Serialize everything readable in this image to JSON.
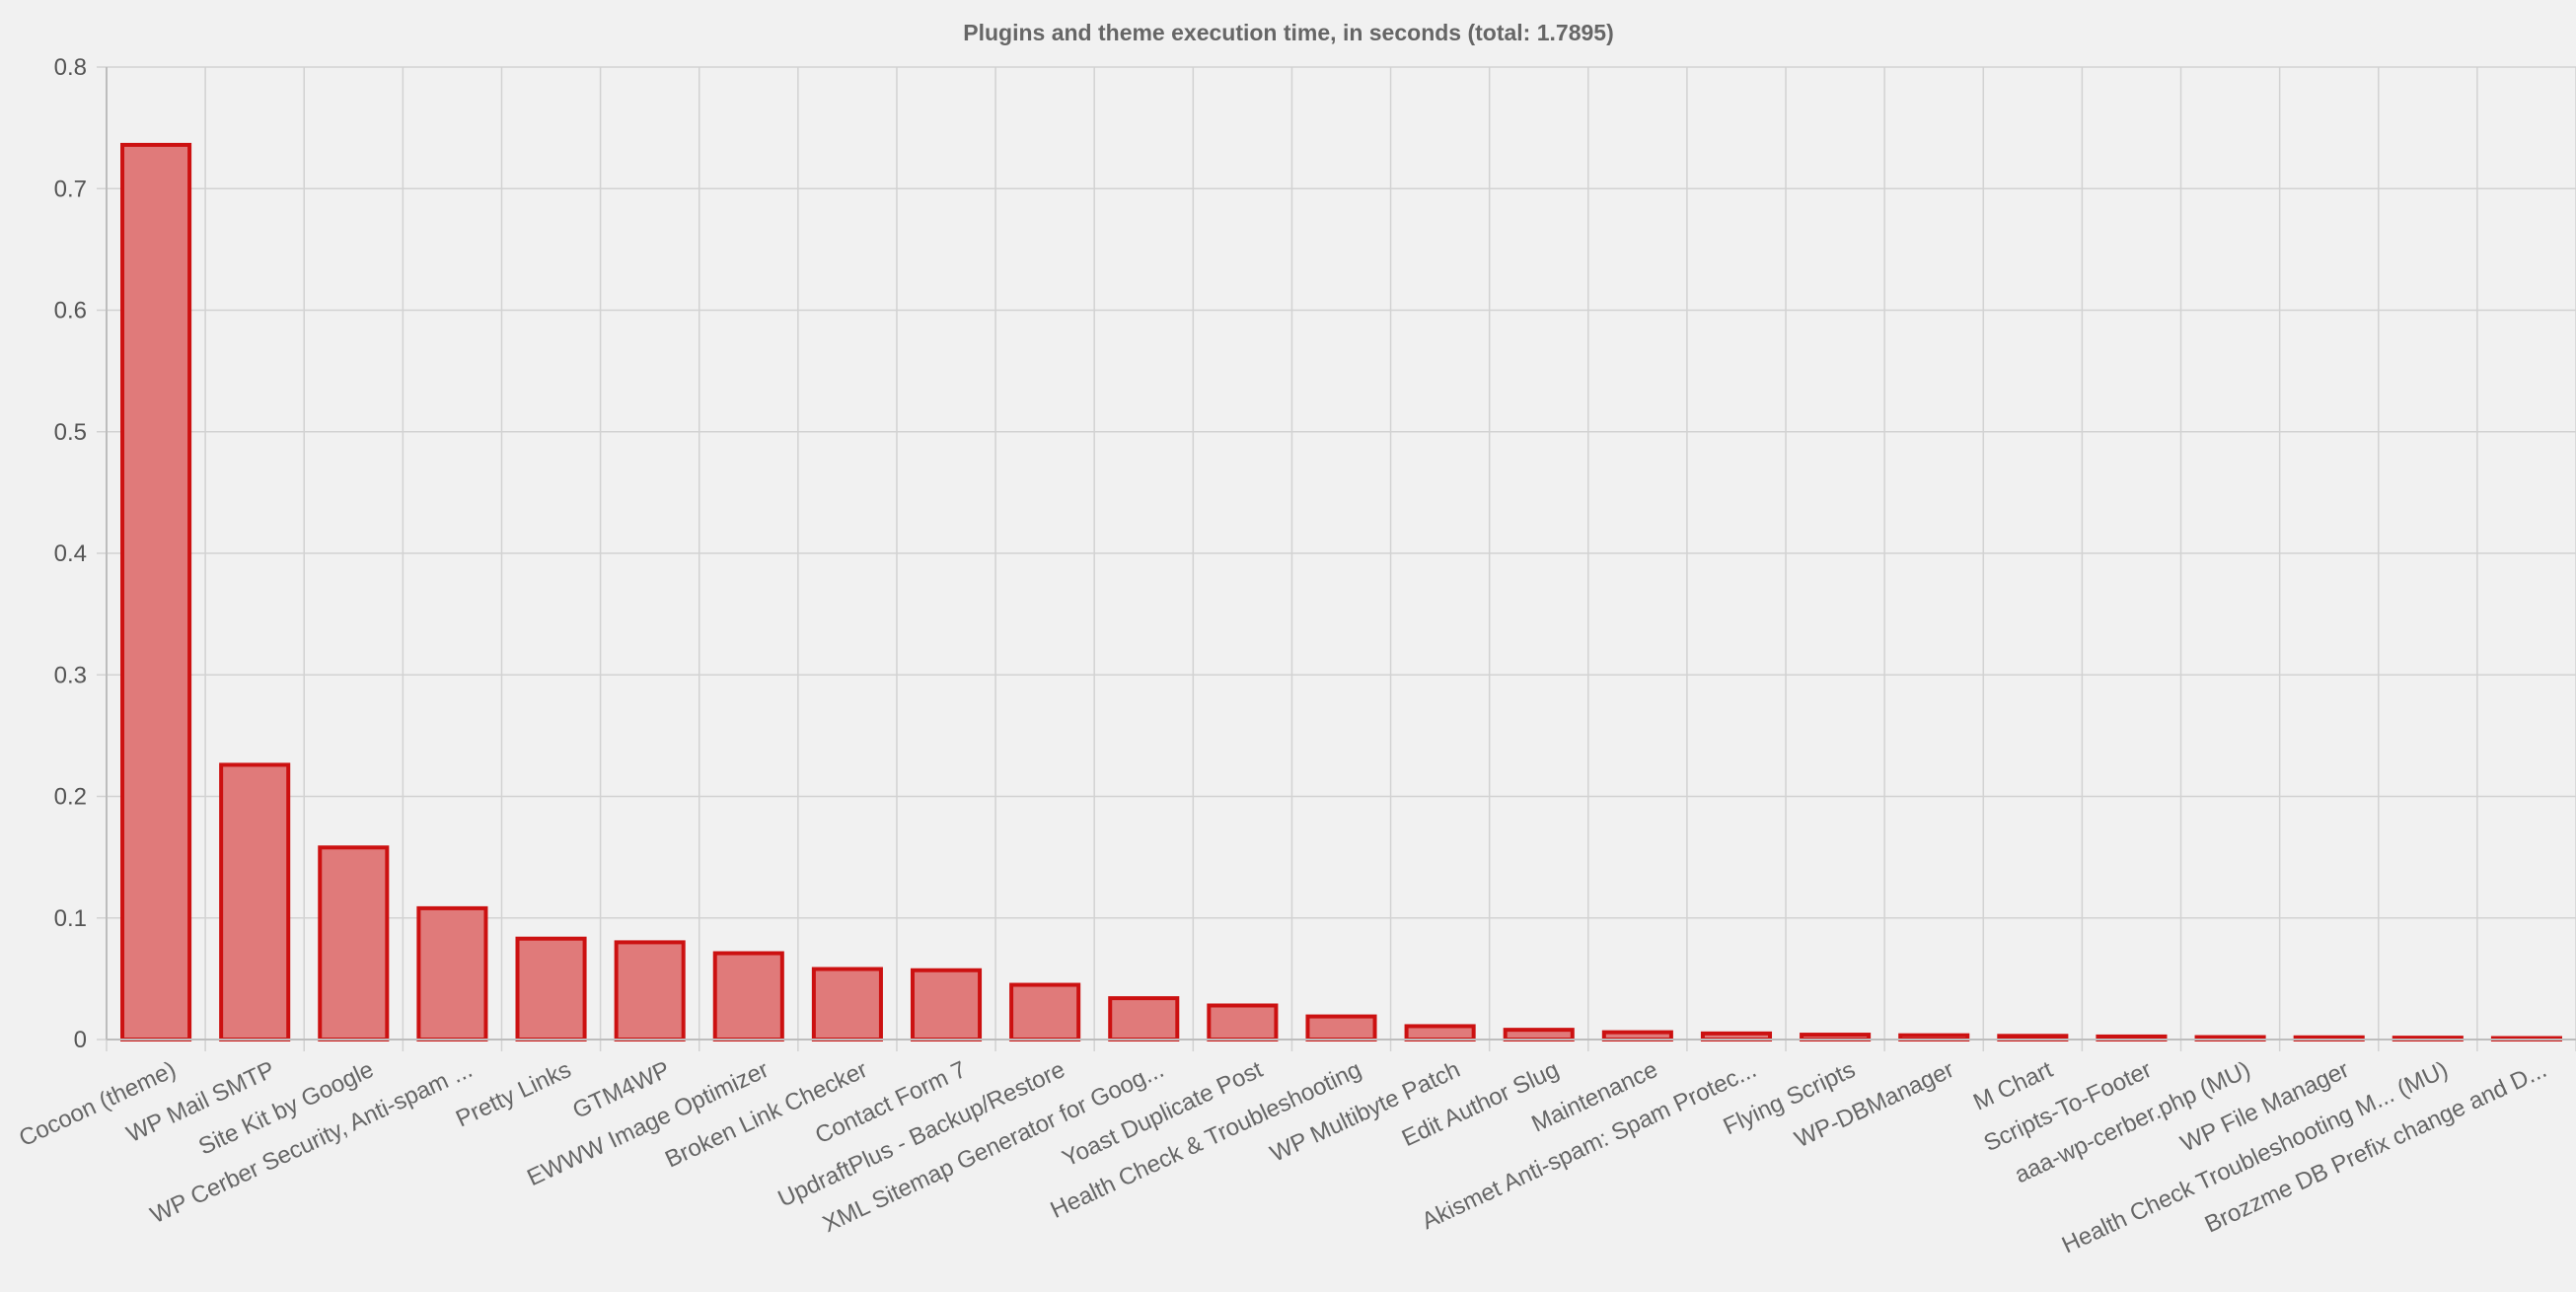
{
  "chart_data": {
    "type": "bar",
    "title": "Plugins and theme execution time, in seconds (total: 1.7895)",
    "xlabel": "",
    "ylabel": "",
    "ylim": [
      0,
      0.8
    ],
    "yticks": [
      "0",
      "0.1",
      "0.2",
      "0.3",
      "0.4",
      "0.5",
      "0.6",
      "0.7",
      "0.8"
    ],
    "grid": true,
    "legend": "none",
    "bar_fill": "#e07a7a",
    "bar_stroke": "#cc1111",
    "categories": [
      "Cocoon (theme)",
      "WP Mail SMTP",
      "Site Kit by Google",
      "WP Cerber Security, Anti-spam ...",
      "Pretty Links",
      "GTM4WP",
      "EWWW Image Optimizer",
      "Broken Link Checker",
      "Contact Form 7",
      "UpdraftPlus - Backup/Restore",
      "XML Sitemap Generator for Goog...",
      "Yoast Duplicate Post",
      "Health Check & Troubleshooting",
      "WP Multibyte Patch",
      "Edit Author Slug",
      "Maintenance",
      "Akismet Anti-spam: Spam Protec...",
      "Flying Scripts",
      "WP-DBManager",
      "M Chart",
      "Scripts-To-Footer",
      "aaa-wp-cerber.php (MU)",
      "WP File Manager",
      "Health Check Troubleshooting M... (MU)",
      "Brozzme DB Prefix change and D..."
    ],
    "values": [
      0.736,
      0.226,
      0.158,
      0.108,
      0.083,
      0.08,
      0.071,
      0.058,
      0.057,
      0.045,
      0.034,
      0.028,
      0.019,
      0.011,
      0.008,
      0.006,
      0.005,
      0.004,
      0.0035,
      0.003,
      0.0025,
      0.002,
      0.0018,
      0.0015,
      0.0012
    ]
  }
}
